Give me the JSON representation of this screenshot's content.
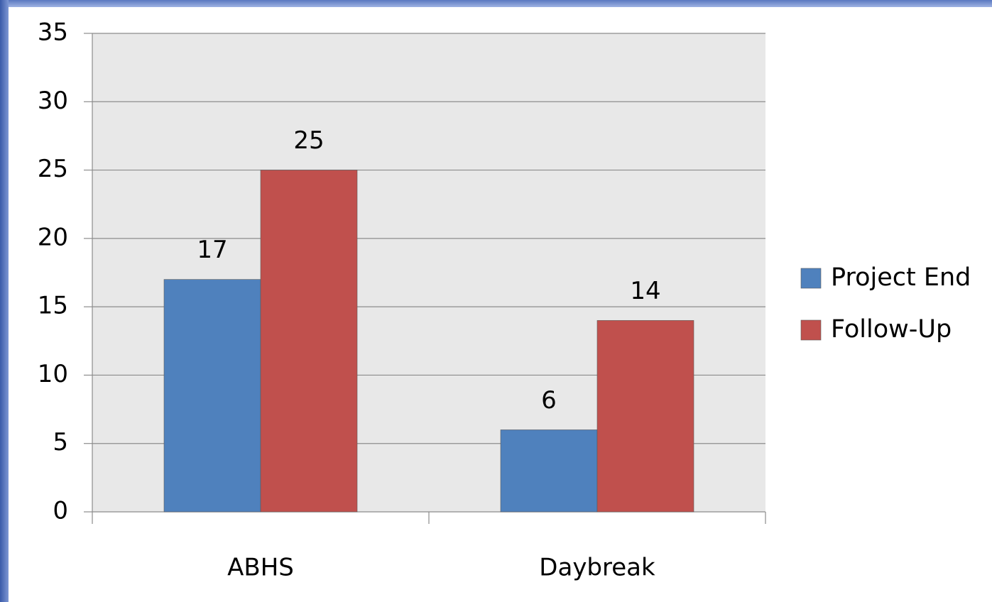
{
  "chart_data": {
    "type": "bar",
    "categories": [
      "ABHS",
      "Daybreak"
    ],
    "series": [
      {
        "name": "Project End",
        "color": "#4f81bd",
        "values": [
          17,
          6
        ]
      },
      {
        "name": "Follow-Up",
        "color": "#c0504d",
        "values": [
          25,
          14
        ]
      }
    ],
    "ylim": [
      0,
      35
    ],
    "yticks": [
      0,
      5,
      10,
      15,
      20,
      25,
      30,
      35
    ],
    "grid": true,
    "legend": "right",
    "data_labels": true
  }
}
